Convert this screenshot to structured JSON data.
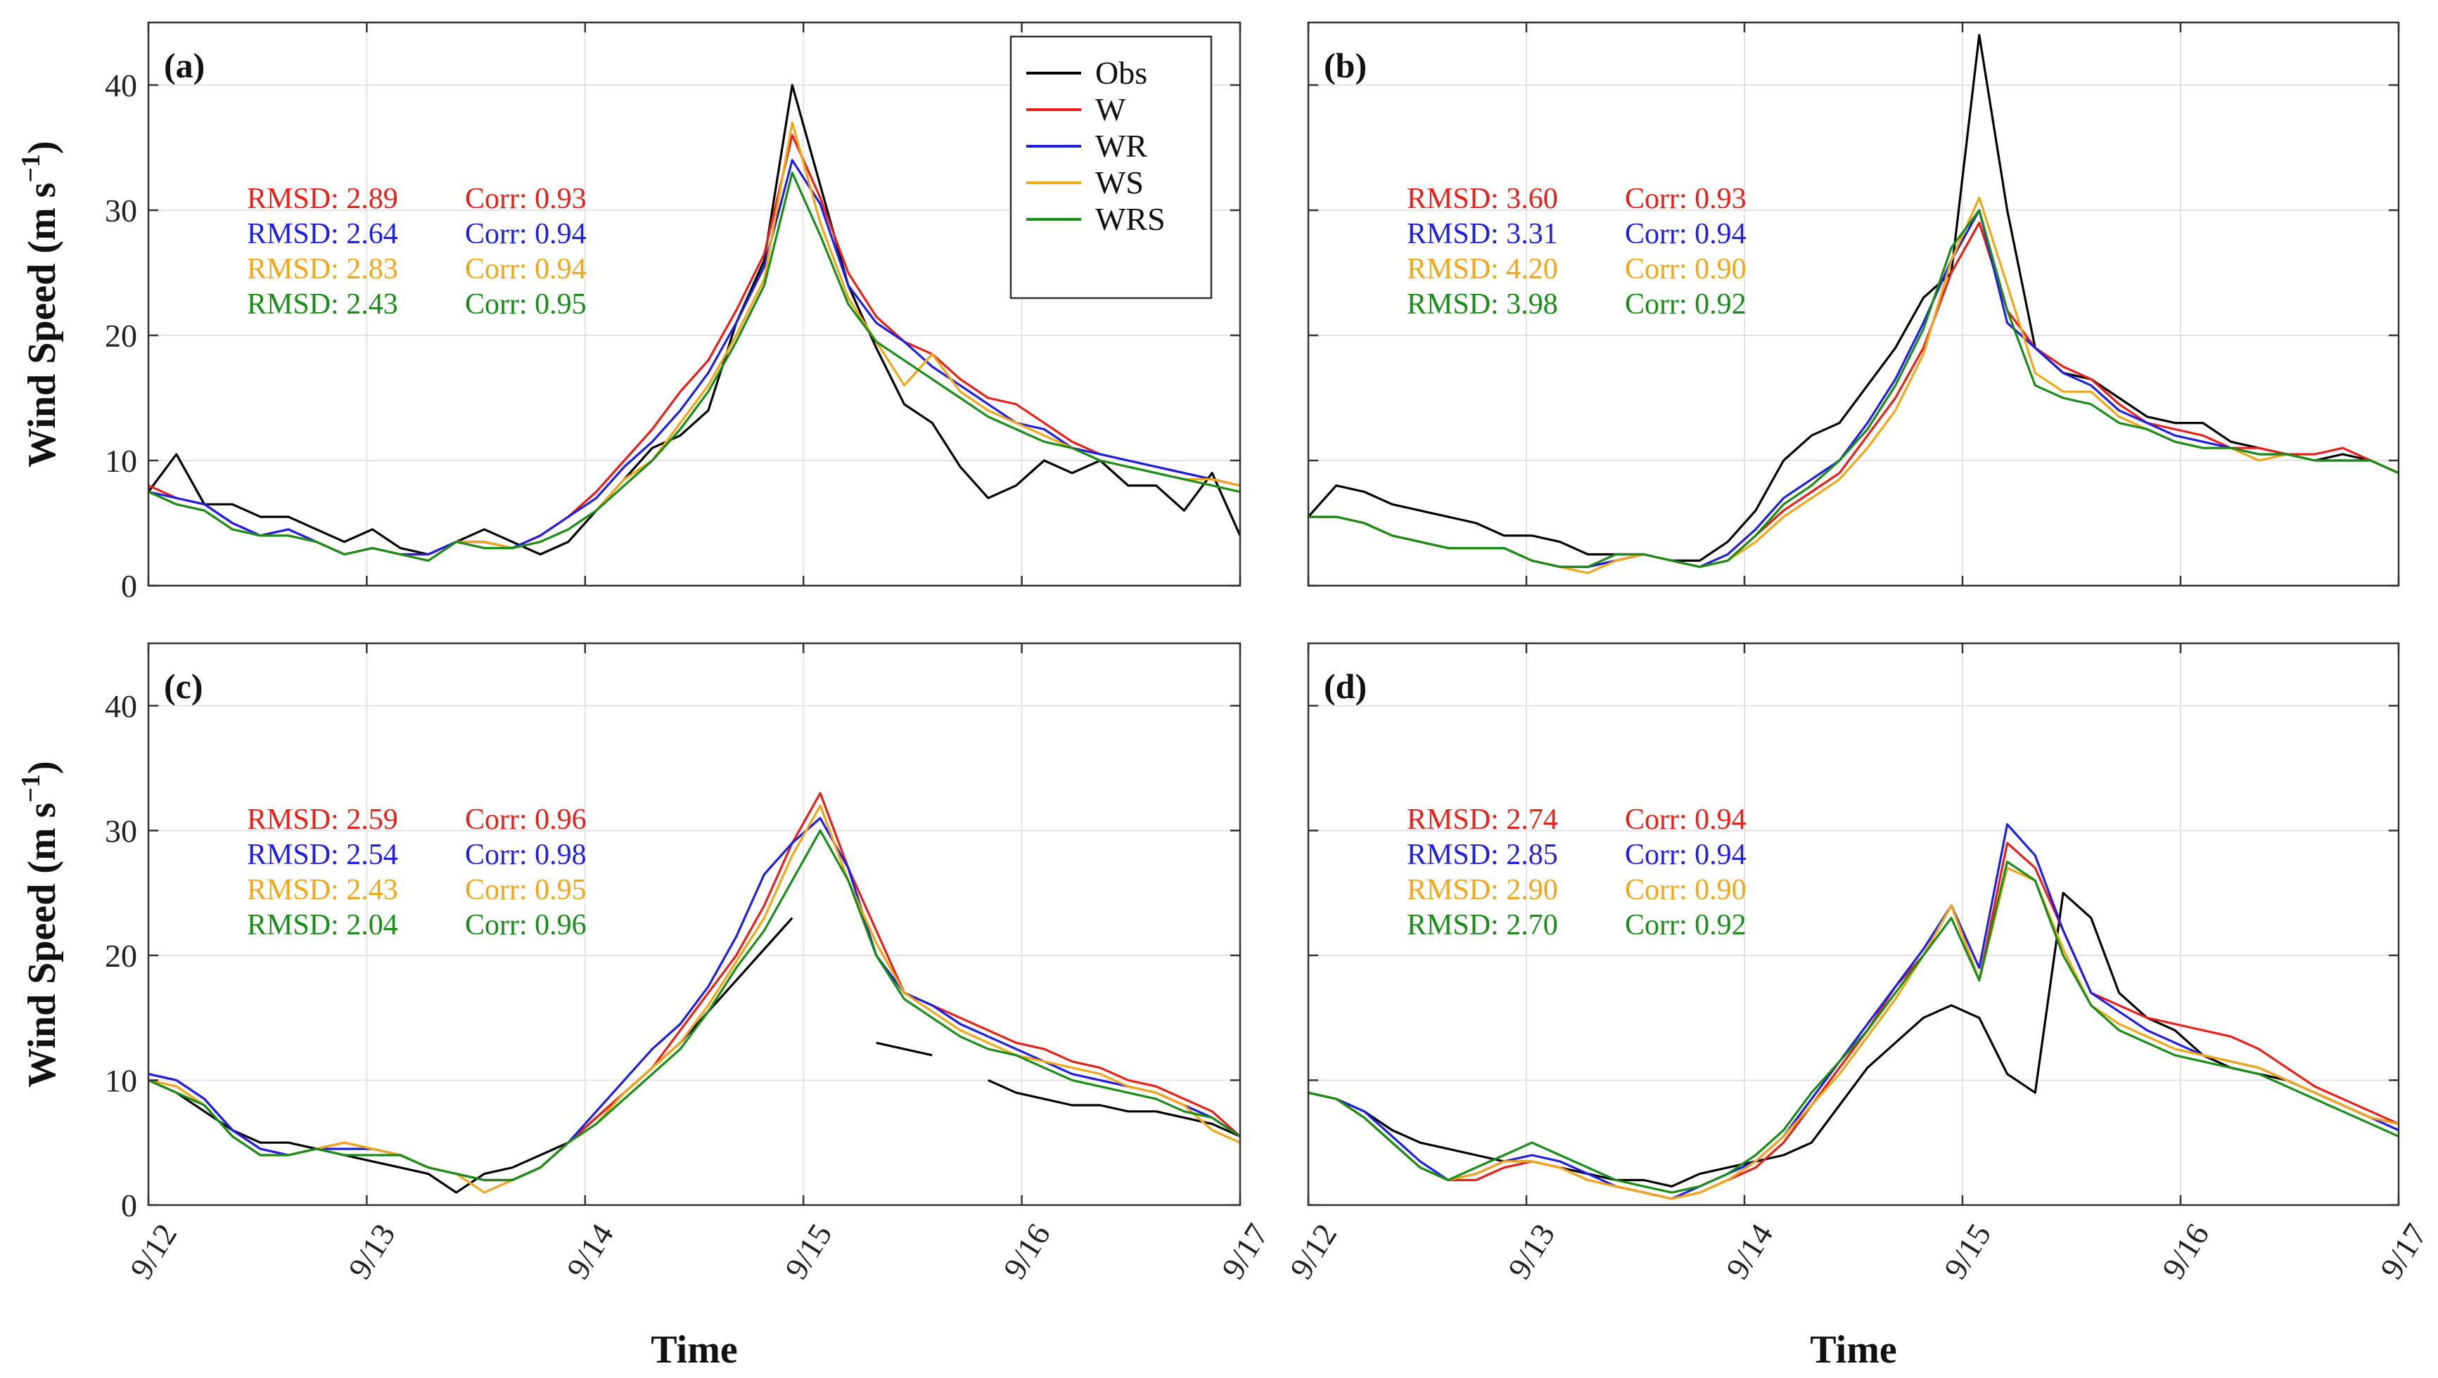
{
  "chart_data": {
    "type": "line",
    "figure_title": "",
    "xlabel": "Time",
    "ylabel_base": "Wind Speed (m s",
    "ylabel_exp": "−1",
    "ylabel_close": ")",
    "xlim": [
      0,
      5
    ],
    "ylim": [
      0,
      45
    ],
    "x_ticks": [
      0,
      1,
      2,
      3,
      4,
      5
    ],
    "x_tick_labels": [
      "9/12",
      "9/13",
      "9/14",
      "9/15",
      "9/16",
      "9/17"
    ],
    "y_ticks": [
      0,
      10,
      20,
      30,
      40
    ],
    "y_tick_labels": [
      "0",
      "10",
      "20",
      "30",
      "40"
    ],
    "grid": true,
    "legend": {
      "location": "top-right of panel (a)",
      "entries": [
        {
          "name": "Obs",
          "color": "#000000"
        },
        {
          "name": "W",
          "color": "#e8201a"
        },
        {
          "name": "WR",
          "color": "#1f1fe0"
        },
        {
          "name": "WS",
          "color": "#f0a71a"
        },
        {
          "name": "WRS",
          "color": "#1a8c1a"
        }
      ]
    },
    "x_step": 0.25,
    "panels": [
      {
        "label": "(a)",
        "stats": [
          {
            "series": "W",
            "rmsd_text": "RMSD: 2.89",
            "corr_text": "Corr: 0.93"
          },
          {
            "series": "WR",
            "rmsd_text": "RMSD: 2.64",
            "corr_text": "Corr: 0.94"
          },
          {
            "series": "WS",
            "rmsd_text": "RMSD: 2.83",
            "corr_text": "Corr: 0.94"
          },
          {
            "series": "WRS",
            "rmsd_text": "RMSD: 2.43",
            "corr_text": "Corr: 0.95"
          }
        ],
        "series": [
          {
            "name": "Obs",
            "values": [
              7.5,
              10.5,
              6.5,
              6.5,
              5.5,
              5.5,
              4.5,
              3.5,
              4.5,
              3,
              2.5,
              3.5,
              4.5,
              3.5,
              2.5,
              3.5,
              6,
              8.5,
              11,
              12,
              14,
              21,
              26,
              40,
              32,
              24,
              19,
              14.5,
              13,
              9.5,
              7,
              8,
              10,
              9,
              10,
              8,
              8,
              6,
              9,
              4
            ]
          },
          {
            "name": "W",
            "values": [
              8,
              7,
              6.5,
              5,
              4,
              4.5,
              3.5,
              2.5,
              3,
              2.5,
              2.5,
              3.5,
              3.5,
              3,
              4,
              5.5,
              7.5,
              10,
              12.5,
              15.5,
              18,
              22,
              26.5,
              36,
              31,
              25,
              21.5,
              19.5,
              18.5,
              16.5,
              15,
              14.5,
              13,
              11.5,
              10.5,
              10,
              9.5,
              9,
              8.5,
              8
            ]
          },
          {
            "name": "WR",
            "values": [
              7.5,
              7,
              6.5,
              5,
              4,
              4.5,
              3.5,
              2.5,
              3,
              2.5,
              2.5,
              3.5,
              3.5,
              3,
              4,
              5.5,
              7,
              9.5,
              11.5,
              14,
              17,
              21,
              25.5,
              34,
              30.5,
              24,
              21,
              19.5,
              17.5,
              16,
              14.5,
              13,
              12.5,
              11,
              10.5,
              10,
              9.5,
              9,
              8.5,
              8
            ]
          },
          {
            "name": "WS",
            "values": [
              7.5,
              6.5,
              6,
              4.5,
              4,
              4,
              3.5,
              2.5,
              3,
              2.5,
              2,
              3.5,
              3.5,
              3,
              3.5,
              4.5,
              6,
              8.5,
              10,
              13,
              16,
              20,
              24.5,
              37,
              29,
              23,
              19.5,
              16,
              18.5,
              15.5,
              14,
              13,
              12,
              11,
              10,
              9.5,
              9,
              8.5,
              8.5,
              8
            ]
          },
          {
            "name": "WRS",
            "values": [
              7.5,
              6.5,
              6,
              4.5,
              4,
              4,
              3.5,
              2.5,
              3,
              2.5,
              2,
              3.5,
              3,
              3,
              3.5,
              4.5,
              6,
              8,
              10,
              12.5,
              15.5,
              19.5,
              24,
              33,
              28,
              22.5,
              19.5,
              18,
              16.5,
              15,
              13.5,
              12.5,
              11.5,
              11,
              10,
              9.5,
              9,
              8.5,
              8,
              7.5
            ]
          }
        ]
      },
      {
        "label": "(b)",
        "stats": [
          {
            "series": "W",
            "rmsd_text": "RMSD: 3.60",
            "corr_text": "Corr: 0.93"
          },
          {
            "series": "WR",
            "rmsd_text": "RMSD: 3.31",
            "corr_text": "Corr: 0.94"
          },
          {
            "series": "WS",
            "rmsd_text": "RMSD: 4.20",
            "corr_text": "Corr: 0.90"
          },
          {
            "series": "WRS",
            "rmsd_text": "RMSD: 3.98",
            "corr_text": "Corr: 0.92"
          }
        ],
        "series": [
          {
            "name": "Obs",
            "values": [
              5.5,
              8,
              7.5,
              6.5,
              6,
              5.5,
              5,
              4,
              4,
              3.5,
              2.5,
              2.5,
              2.5,
              2,
              2,
              3.5,
              6,
              10,
              12,
              13,
              16,
              19,
              23,
              25,
              44,
              30,
              19,
              17,
              16.5,
              15,
              13.5,
              13,
              13,
              11.5,
              11,
              10.5,
              10,
              10.5,
              10,
              9
            ]
          },
          {
            "name": "W",
            "values": [
              5.5,
              5.5,
              5,
              4,
              3.5,
              3,
              3,
              3,
              2,
              1.5,
              1.5,
              2,
              2.5,
              2,
              1.5,
              2,
              4,
              6,
              7.5,
              9,
              12,
              15,
              19,
              25,
              29,
              22,
              19,
              17.5,
              16.5,
              14.5,
              13,
              12.5,
              12,
              11,
              11,
              10.5,
              10.5,
              11,
              10,
              9
            ]
          },
          {
            "name": "WR",
            "values": [
              5.5,
              5.5,
              5,
              4,
              3.5,
              3,
              3,
              3,
              2,
              1.5,
              1.5,
              2,
              2.5,
              2,
              1.5,
              2.5,
              4.5,
              7,
              8.5,
              10,
              13,
              16.5,
              21,
              26,
              30,
              21,
              19,
              17,
              16,
              14,
              13,
              12,
              11.5,
              11,
              10.5,
              10.5,
              10,
              10,
              10,
              9
            ]
          },
          {
            "name": "WS",
            "values": [
              5.5,
              5.5,
              5,
              4,
              3.5,
              3,
              3,
              3,
              2,
              1.5,
              1,
              2,
              2.5,
              2,
              1.5,
              2,
              3.5,
              5.5,
              7,
              8.5,
              11,
              14,
              18.5,
              26,
              31,
              24,
              17,
              15.5,
              15.5,
              13.5,
              12.5,
              11.5,
              11,
              11,
              10,
              10.5,
              10,
              10,
              10,
              9
            ]
          },
          {
            "name": "WRS",
            "values": [
              5.5,
              5.5,
              5,
              4,
              3.5,
              3,
              3,
              3,
              2,
              1.5,
              1.5,
              2.5,
              2.5,
              2,
              1.5,
              2,
              4,
              6.5,
              8,
              10,
              12.5,
              16,
              20.5,
              27,
              30,
              22,
              16,
              15,
              14.5,
              13,
              12.5,
              11.5,
              11,
              11,
              10.5,
              10.5,
              10,
              10,
              10,
              9
            ]
          }
        ]
      },
      {
        "label": "(c)",
        "stats": [
          {
            "series": "W",
            "rmsd_text": "RMSD: 2.59",
            "corr_text": "Corr: 0.96"
          },
          {
            "series": "WR",
            "rmsd_text": "RMSD: 2.54",
            "corr_text": "Corr: 0.98"
          },
          {
            "series": "WS",
            "rmsd_text": "RMSD: 2.43",
            "corr_text": "Corr: 0.95"
          },
          {
            "series": "WRS",
            "rmsd_text": "RMSD: 2.04",
            "corr_text": "Corr: 0.96"
          }
        ],
        "series": [
          {
            "name": "Obs",
            "values": [
              10,
              9,
              7.5,
              6,
              5,
              5,
              4.5,
              4,
              3.5,
              3,
              2.5,
              1,
              2.5,
              3,
              4,
              5,
              7,
              9,
              11,
              13,
              15.5,
              18,
              20.5,
              23,
              null,
              null,
              13,
              12.5,
              12,
              null,
              10,
              9,
              8.5,
              8,
              8,
              7.5,
              7.5,
              7,
              6.5,
              5.5
            ]
          },
          {
            "name": "W",
            "values": [
              10.5,
              10,
              8.5,
              6,
              4.5,
              4,
              4.5,
              5,
              4.5,
              4,
              3,
              2.5,
              2,
              2,
              3,
              5,
              7,
              9,
              11,
              14,
              17,
              20,
              24,
              29,
              33,
              27,
              22,
              17,
              16,
              15,
              14,
              13,
              12.5,
              11.5,
              11,
              10,
              9.5,
              8.5,
              7.5,
              5.5
            ]
          },
          {
            "name": "WR",
            "values": [
              10.5,
              10,
              8.5,
              6,
              4.5,
              4,
              4.5,
              4.5,
              4.5,
              4,
              3,
              2.5,
              2,
              2,
              3,
              5,
              7.5,
              10,
              12.5,
              14.5,
              17.5,
              21.5,
              26.5,
              29,
              31,
              27,
              20,
              17,
              16,
              14.5,
              13.5,
              12.5,
              11.5,
              10.5,
              10,
              9.5,
              9,
              8,
              7,
              5.5
            ]
          },
          {
            "name": "WS",
            "values": [
              10,
              9.5,
              8,
              5.5,
              4,
              4,
              4.5,
              5,
              4.5,
              4,
              3,
              2.5,
              1,
              2,
              3,
              5,
              6.5,
              9,
              11,
              13,
              16,
              19.5,
              23,
              28,
              32,
              26,
              21,
              17,
              15.5,
              14,
              13,
              12,
              11.5,
              11,
              10.5,
              9.5,
              9,
              8,
              6,
              5
            ]
          },
          {
            "name": "WRS",
            "values": [
              10,
              9,
              8,
              5.5,
              4,
              4,
              4.5,
              4,
              4,
              4,
              3,
              2.5,
              2,
              2,
              3,
              5,
              6.5,
              8.5,
              10.5,
              12.5,
              15.5,
              19,
              22,
              26,
              30,
              26,
              20,
              16.5,
              15,
              13.5,
              12.5,
              12,
              11,
              10,
              9.5,
              9,
              8.5,
              7.5,
              7,
              5.5
            ]
          }
        ]
      },
      {
        "label": "(d)",
        "stats": [
          {
            "series": "W",
            "rmsd_text": "RMSD: 2.74",
            "corr_text": "Corr: 0.94"
          },
          {
            "series": "WR",
            "rmsd_text": "RMSD: 2.85",
            "corr_text": "Corr: 0.94"
          },
          {
            "series": "WS",
            "rmsd_text": "RMSD: 2.90",
            "corr_text": "Corr: 0.90"
          },
          {
            "series": "WRS",
            "rmsd_text": "RMSD: 2.70",
            "corr_text": "Corr: 0.92"
          }
        ],
        "series": [
          {
            "name": "Obs",
            "values": [
              9,
              8.5,
              7.5,
              6,
              5,
              4.5,
              4,
              3.5,
              3.5,
              3,
              2.5,
              2,
              2,
              1.5,
              2.5,
              3,
              3.5,
              4,
              5,
              8,
              11,
              13,
              15,
              16,
              15,
              10.5,
              9,
              25,
              23,
              17,
              15,
              14,
              12,
              11,
              10.5,
              10,
              9,
              8,
              7,
              6.5
            ]
          },
          {
            "name": "W",
            "values": [
              9,
              8.5,
              7,
              5,
              3,
              2,
              2,
              3,
              3.5,
              3,
              2,
              1.5,
              1,
              0.5,
              1,
              2,
              3,
              5,
              8,
              11,
              14,
              17.5,
              20,
              24,
              18,
              29,
              27,
              22,
              17,
              16,
              15,
              14.5,
              14,
              13.5,
              12.5,
              11,
              9.5,
              8.5,
              7.5,
              6.5
            ]
          },
          {
            "name": "WR",
            "values": [
              9,
              8.5,
              7.5,
              5.5,
              3.5,
              2,
              2.5,
              3.5,
              4,
              3.5,
              2.5,
              1.5,
              1,
              0.5,
              1.5,
              2.5,
              3.5,
              5.5,
              8.5,
              11.5,
              14.5,
              17.5,
              20.5,
              24,
              19,
              30.5,
              28,
              22,
              17,
              15.5,
              14,
              13,
              12,
              11.5,
              11,
              10,
              9,
              8,
              7,
              6
            ]
          },
          {
            "name": "WS",
            "values": [
              9,
              8.5,
              7,
              5,
              3,
              2,
              2.5,
              3.5,
              3.5,
              3,
              2,
              1.5,
              1,
              0.5,
              1,
              2,
              3.5,
              5.5,
              8,
              10.5,
              13.5,
              16.5,
              20,
              24,
              18,
              27,
              26,
              20.5,
              16,
              14.5,
              13.5,
              12.5,
              12,
              11.5,
              11,
              10,
              9,
              8,
              7,
              6.5
            ]
          },
          {
            "name": "WRS",
            "values": [
              9,
              8.5,
              7,
              5,
              3,
              2,
              3,
              4,
              5,
              4,
              3,
              2,
              1.5,
              1,
              1.5,
              2.5,
              4,
              6,
              9,
              11.5,
              14,
              17,
              20,
              23,
              18,
              27.5,
              26,
              20,
              16,
              14,
              13,
              12,
              11.5,
              11,
              10.5,
              9.5,
              8.5,
              7.5,
              6.5,
              5.5
            ]
          }
        ]
      }
    ]
  }
}
